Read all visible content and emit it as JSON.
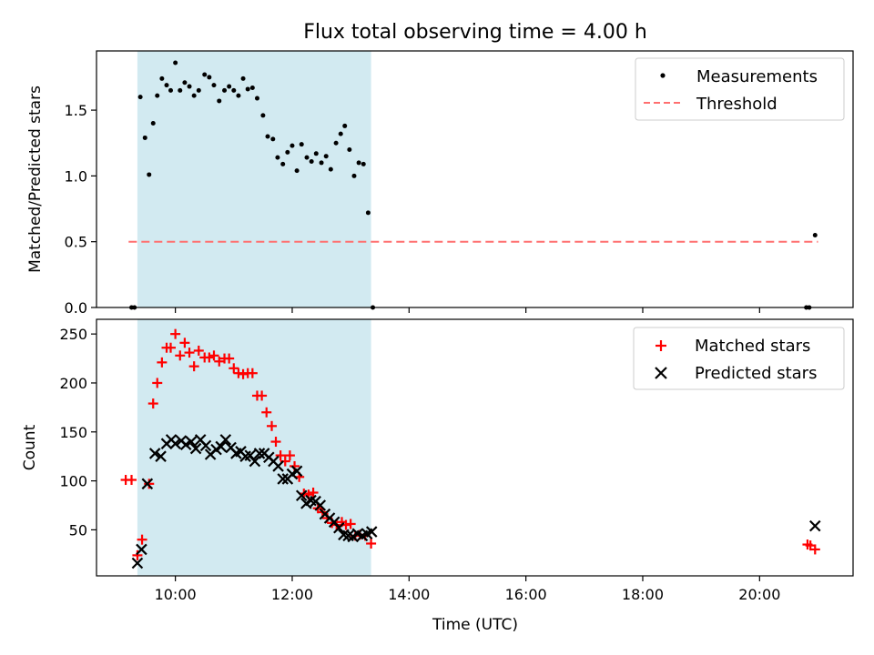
{
  "title": "Flux total observing time = 4.00 h",
  "colors": {
    "shade": "#add8e6",
    "threshold": "#ff6f6f",
    "matched": "#ff0000",
    "predicted": "#000000",
    "measure": "#000000"
  },
  "chart_data": [
    {
      "type": "scatter",
      "xlabel": "",
      "ylabel": "Matched/Predicted stars",
      "xlim": [
        8.65,
        21.6
      ],
      "ylim": [
        0,
        1.95
      ],
      "yticks": [
        0.0,
        0.5,
        1.0,
        1.5
      ],
      "ytick_labels": [
        "0.0",
        "0.5",
        "1.0",
        "1.5"
      ],
      "xticks": [
        10,
        12,
        14,
        16,
        18,
        20
      ],
      "xtick_labels": [],
      "shaded_span": [
        9.35,
        13.35
      ],
      "legend_position": "top-right",
      "legend": [
        "Measurements",
        "Threshold"
      ],
      "threshold": {
        "name": "Threshold",
        "value": 0.5,
        "x": [
          9.2,
          21.0
        ]
      },
      "series": [
        {
          "name": "Measurements",
          "x": [
            9.25,
            9.3,
            9.4,
            9.48,
            9.55,
            9.62,
            9.69,
            9.77,
            9.85,
            9.92,
            10.0,
            10.08,
            10.16,
            10.24,
            10.32,
            10.4,
            10.5,
            10.58,
            10.66,
            10.75,
            10.84,
            10.92,
            11.0,
            11.08,
            11.16,
            11.24,
            11.32,
            11.4,
            11.5,
            11.58,
            11.67,
            11.75,
            11.84,
            11.92,
            12.0,
            12.08,
            12.16,
            12.25,
            12.33,
            12.41,
            12.5,
            12.58,
            12.66,
            12.75,
            12.83,
            12.9,
            12.98,
            13.06,
            13.14,
            13.22,
            13.3,
            13.38,
            20.8,
            20.85,
            20.95
          ],
          "y": [
            0.0,
            0.0,
            1.6,
            1.29,
            1.01,
            1.4,
            1.61,
            1.74,
            1.69,
            1.65,
            1.86,
            1.65,
            1.71,
            1.68,
            1.61,
            1.65,
            1.77,
            1.75,
            1.69,
            1.57,
            1.65,
            1.68,
            1.65,
            1.61,
            1.74,
            1.66,
            1.67,
            1.59,
            1.46,
            1.3,
            1.28,
            1.14,
            1.09,
            1.18,
            1.23,
            1.04,
            1.24,
            1.14,
            1.11,
            1.17,
            1.1,
            1.15,
            1.05,
            1.25,
            1.32,
            1.38,
            1.2,
            1.0,
            1.1,
            1.09,
            0.72,
            0.0,
            0.0,
            0.0,
            0.55
          ]
        }
      ]
    },
    {
      "type": "scatter",
      "xlabel": "Time (UTC)",
      "ylabel": "Count",
      "xlim": [
        8.65,
        21.6
      ],
      "ylim": [
        3,
        265
      ],
      "yticks": [
        50,
        100,
        150,
        200,
        250
      ],
      "ytick_labels": [
        "50",
        "100",
        "150",
        "200",
        "250"
      ],
      "xticks": [
        10,
        12,
        14,
        16,
        18,
        20
      ],
      "xtick_labels": [
        "10:00",
        "12:00",
        "14:00",
        "16:00",
        "18:00",
        "20:00"
      ],
      "shaded_span": [
        9.35,
        13.35
      ],
      "legend_position": "top-right",
      "legend": [
        "Matched stars",
        "Predicted stars"
      ],
      "series": [
        {
          "name": "Matched stars",
          "marker": "+",
          "x": [
            9.15,
            9.25,
            9.35,
            9.43,
            9.55,
            9.62,
            9.69,
            9.77,
            9.85,
            9.92,
            10.0,
            10.08,
            10.16,
            10.24,
            10.32,
            10.4,
            10.5,
            10.58,
            10.66,
            10.75,
            10.84,
            10.92,
            11.0,
            11.08,
            11.16,
            11.24,
            11.32,
            11.4,
            11.48,
            11.56,
            11.65,
            11.72,
            11.8,
            11.88,
            11.96,
            12.04,
            12.12,
            12.2,
            12.28,
            12.36,
            12.44,
            12.52,
            12.6,
            12.68,
            12.76,
            12.85,
            12.92,
            13.0,
            13.08,
            13.16,
            13.25,
            13.35,
            20.82,
            20.87,
            20.95
          ],
          "y": [
            101,
            101,
            24,
            40,
            97,
            179,
            200,
            221,
            236,
            236,
            250,
            228,
            241,
            231,
            217,
            233,
            226,
            226,
            228,
            222,
            225,
            225,
            215,
            210,
            209,
            210,
            210,
            187,
            187,
            170,
            156,
            140,
            126,
            120,
            126,
            115,
            104,
            87,
            86,
            88,
            72,
            68,
            62,
            57,
            55,
            58,
            55,
            56,
            44,
            45,
            44,
            36,
            35,
            34,
            30
          ]
        },
        {
          "name": "Predicted stars",
          "marker": "x",
          "x": [
            9.35,
            9.42,
            9.52,
            9.65,
            9.75,
            9.85,
            9.93,
            10.0,
            10.1,
            10.18,
            10.27,
            10.35,
            10.43,
            10.52,
            10.6,
            10.7,
            10.78,
            10.86,
            10.95,
            11.04,
            11.12,
            11.2,
            11.28,
            11.36,
            11.44,
            11.52,
            11.6,
            11.68,
            11.76,
            11.84,
            11.92,
            12.0,
            12.08,
            12.16,
            12.24,
            12.32,
            12.4,
            12.48,
            12.56,
            12.64,
            12.72,
            12.8,
            12.88,
            12.96,
            13.04,
            13.12,
            13.2,
            13.28,
            13.36,
            20.95
          ],
          "y": [
            16,
            30,
            97,
            128,
            125,
            138,
            142,
            138,
            141,
            137,
            140,
            133,
            142,
            136,
            127,
            132,
            135,
            142,
            134,
            128,
            130,
            125,
            126,
            120,
            128,
            128,
            124,
            120,
            115,
            102,
            102,
            107,
            110,
            85,
            77,
            80,
            79,
            75,
            66,
            62,
            58,
            52,
            45,
            44,
            43,
            46,
            44,
            46,
            48,
            54
          ]
        }
      ]
    }
  ]
}
